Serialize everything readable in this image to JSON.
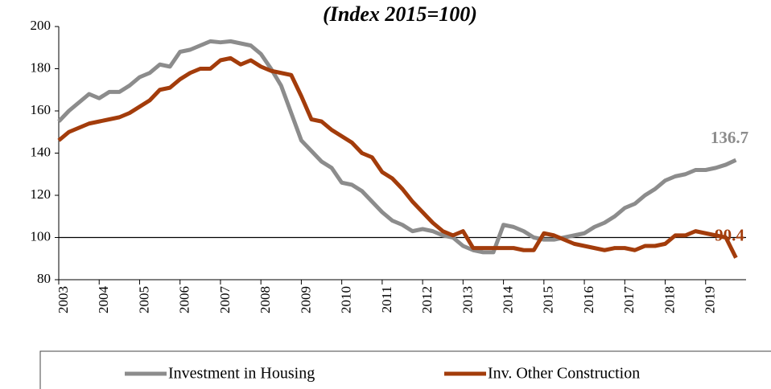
{
  "chart_data": {
    "type": "line",
    "title": "(Index 2015=100)",
    "x": [
      2003,
      2003.25,
      2003.5,
      2003.75,
      2004,
      2004.25,
      2004.5,
      2004.75,
      2005,
      2005.25,
      2005.5,
      2005.75,
      2006,
      2006.25,
      2006.5,
      2006.75,
      2007,
      2007.25,
      2007.5,
      2007.75,
      2008,
      2008.25,
      2008.5,
      2008.75,
      2009,
      2009.25,
      2009.5,
      2009.75,
      2010,
      2010.25,
      2010.5,
      2010.75,
      2011,
      2011.25,
      2011.5,
      2011.75,
      2012,
      2012.25,
      2012.5,
      2012.75,
      2013,
      2013.25,
      2013.5,
      2013.75,
      2014,
      2014.25,
      2014.5,
      2014.75,
      2015,
      2015.25,
      2015.5,
      2015.75,
      2016,
      2016.25,
      2016.5,
      2016.75,
      2017,
      2017.25,
      2017.5,
      2017.75,
      2018,
      2018.25,
      2018.5,
      2018.75,
      2019,
      2019.25,
      2019.5,
      2019.75
    ],
    "series": [
      {
        "name": "Investment in Housing",
        "color": "#8c8c8c",
        "values": [
          155,
          160,
          164,
          168,
          166,
          169,
          169,
          172,
          176,
          178,
          182,
          181,
          188,
          189,
          191,
          193,
          192.5,
          193,
          192,
          191,
          187,
          180,
          172,
          159,
          146,
          141,
          136,
          133,
          126,
          125,
          122,
          117,
          112,
          108,
          106,
          103,
          104,
          103,
          101,
          100,
          96,
          94,
          93,
          93,
          106,
          105,
          103,
          100,
          99,
          99,
          100,
          101,
          102,
          105,
          107,
          110,
          114,
          116,
          120,
          123,
          127,
          129,
          130,
          132,
          132,
          133,
          134.5,
          136.7
        ],
        "value_labels": [
          null,
          null,
          null,
          null,
          null,
          null,
          null,
          null,
          null,
          null,
          null,
          null,
          null,
          null,
          null,
          null,
          null,
          null,
          null,
          null,
          null,
          null,
          null,
          null,
          null,
          null,
          null,
          null,
          null,
          null,
          null,
          null,
          null,
          null,
          null,
          null,
          null,
          null,
          null,
          null,
          null,
          null,
          null,
          null,
          null,
          null,
          null,
          null,
          null,
          null,
          null,
          null,
          null,
          null,
          null,
          null,
          null,
          null,
          null,
          null,
          null,
          null,
          null,
          null,
          null,
          null,
          null,
          "136.7"
        ]
      },
      {
        "name": "Inv. Other Construction",
        "color": "#a33c0b",
        "values": [
          146,
          150,
          152,
          154,
          155,
          156,
          157,
          159,
          162,
          165,
          170,
          171,
          175,
          178,
          180,
          180,
          184,
          185,
          182,
          184,
          181,
          179,
          178,
          177,
          167,
          156,
          155,
          151,
          148,
          145,
          140,
          138,
          131,
          128,
          123,
          117,
          112,
          107,
          103,
          101,
          103,
          95,
          95,
          95,
          95,
          95,
          94,
          94,
          102,
          101,
          99,
          97,
          96,
          95,
          94,
          95,
          95,
          94,
          96,
          96,
          97,
          101,
          101,
          103,
          102,
          101,
          100,
          90.4
        ],
        "value_labels": [
          null,
          null,
          null,
          null,
          null,
          null,
          null,
          null,
          null,
          null,
          null,
          null,
          null,
          null,
          null,
          null,
          null,
          null,
          null,
          null,
          null,
          null,
          null,
          null,
          null,
          null,
          null,
          null,
          null,
          null,
          null,
          null,
          null,
          null,
          null,
          null,
          null,
          null,
          null,
          null,
          null,
          null,
          null,
          null,
          null,
          null,
          null,
          null,
          null,
          null,
          null,
          null,
          null,
          null,
          null,
          null,
          null,
          null,
          null,
          null,
          null,
          null,
          null,
          null,
          null,
          null,
          null,
          "90.4"
        ]
      }
    ],
    "hline": 100,
    "xlim": [
      2003,
      2020
    ],
    "xticks": [
      2003,
      2004,
      2005,
      2006,
      2007,
      2008,
      2009,
      2010,
      2011,
      2012,
      2013,
      2014,
      2015,
      2016,
      2017,
      2018,
      2019
    ],
    "ylim": [
      80,
      200
    ],
    "yticks": [
      80,
      100,
      120,
      140,
      160,
      180,
      200
    ],
    "legend": "bottom"
  }
}
